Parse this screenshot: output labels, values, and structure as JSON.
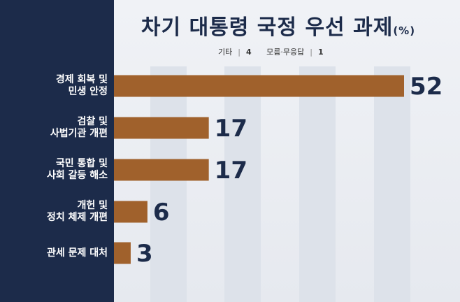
{
  "chart_data": {
    "type": "bar",
    "orientation": "horizontal",
    "title": "차기 대통령 국정 우선 과제",
    "title_unit": "(%)",
    "categories": [
      [
        "경제 회복 및",
        "민생 안정"
      ],
      [
        "검찰 및",
        "사법기관 개편"
      ],
      [
        "국민 통합 및",
        "사회 갈등 해소"
      ],
      [
        "개헌 및",
        "정치 체제 개편"
      ],
      [
        "관세 문제 대처"
      ]
    ],
    "values": [
      52,
      17,
      17,
      6,
      3
    ],
    "value_labels": [
      "52",
      "17",
      "17",
      "6",
      "3"
    ],
    "xlim": [
      0,
      60
    ],
    "grid": "vertical bands",
    "notes": [
      {
        "label": "기타",
        "value": "4"
      },
      {
        "label": "모름·무응답",
        "value": "1"
      }
    ],
    "colors": {
      "bar": "#a0612c",
      "sidebar": "#1c2b4a",
      "value_text": "#1c2b4a"
    }
  }
}
